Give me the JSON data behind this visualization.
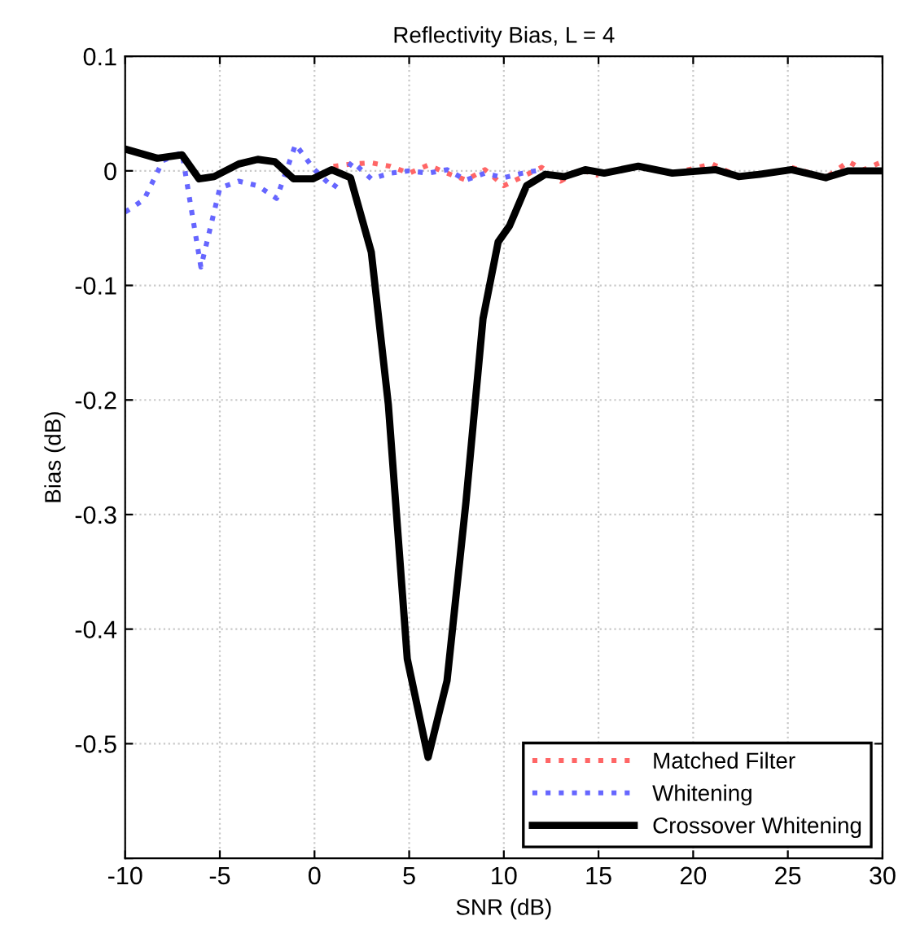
{
  "chart_data": {
    "type": "line",
    "title": "Reflectivity Bias, L = 4",
    "xlabel": "SNR (dB)",
    "ylabel": "Bias (dB)",
    "xlim": [
      -10,
      30
    ],
    "xticks": [
      -10,
      -5,
      0,
      5,
      10,
      15,
      20,
      25,
      30
    ],
    "ylim": [
      -0.6,
      0.1
    ],
    "yticks": [
      {
        "value": -0.6,
        "label": null
      },
      -0.5,
      -0.4,
      -0.3,
      -0.2,
      -0.1,
      0,
      0.1
    ],
    "grid": true,
    "legend": "bottom right",
    "series": [
      {
        "name": "Matched Filter",
        "color": "#ff6666",
        "line_style": "dotted",
        "x": [
          1,
          2,
          3,
          4,
          5,
          6,
          7,
          8,
          9,
          10,
          11,
          12,
          13,
          14,
          15,
          17,
          19,
          21,
          22.4,
          23.5,
          25.2,
          27,
          28.2,
          29,
          30
        ],
        "values": [
          0.004,
          0.006,
          0.007,
          0.004,
          -0.002,
          0.005,
          -0.002,
          -0.008,
          0.001,
          -0.013,
          -0.005,
          0.003,
          -0.009,
          0.001,
          -0.004,
          null,
          -0.002,
          0.006,
          -0.005,
          null,
          0.003,
          -0.006,
          0.008,
          0.001,
          0.008
        ]
      },
      {
        "name": "Whitening",
        "color": "#6666ff",
        "line_style": "dotted",
        "x": [
          -10,
          -9,
          -8,
          -7,
          -6,
          -5,
          -4,
          -3,
          -2,
          -1,
          0,
          1,
          2,
          3,
          4,
          5,
          6,
          7,
          8,
          9,
          10,
          11,
          12
        ],
        "values": [
          -0.036,
          -0.025,
          0.009,
          0.016,
          -0.084,
          -0.015,
          -0.009,
          -0.013,
          -0.024,
          0.023,
          0.001,
          -0.015,
          0.008,
          -0.007,
          -0.002,
          0,
          -0.002,
          0.001,
          -0.008,
          -0.002,
          -0.006,
          -0.002,
          0.001
        ]
      },
      {
        "name": "Crossover Whitening",
        "color": "#000000",
        "line_style": "solid",
        "x": [
          -10,
          -8.3,
          -7,
          -6.1,
          -5.3,
          -4,
          -3,
          -2.1,
          -1.1,
          -0.1,
          0.9,
          1.9,
          3,
          3.9,
          4.9,
          6,
          7,
          8,
          8.9,
          9.7,
          10.3,
          11.2,
          12.2,
          13.2,
          14.3,
          15.3,
          17.1,
          18.9,
          21.2,
          22.4,
          23.5,
          25.2,
          27,
          28.2,
          30
        ],
        "values": [
          0.019,
          0.011,
          0.014,
          -0.007,
          -0.005,
          0.006,
          0.01,
          0.008,
          -0.007,
          -0.007,
          0.001,
          -0.006,
          -0.071,
          -0.204,
          -0.426,
          -0.512,
          -0.445,
          -0.289,
          -0.129,
          -0.062,
          -0.048,
          -0.013,
          -0.003,
          -0.005,
          0.001,
          -0.002,
          0.004,
          -0.002,
          0.001,
          -0.005,
          -0.003,
          0.001,
          -0.006,
          0,
          0
        ]
      }
    ]
  }
}
